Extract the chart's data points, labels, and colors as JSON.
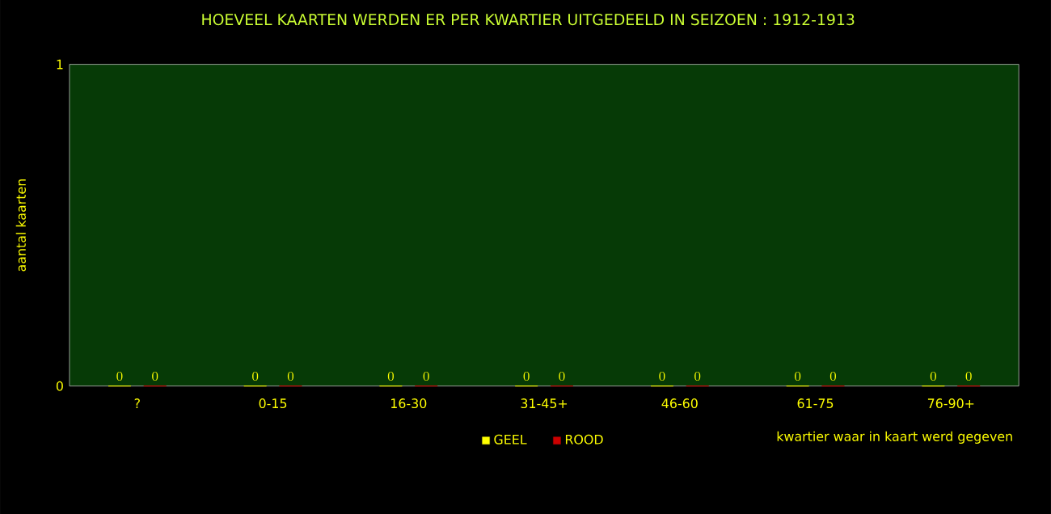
{
  "chart_data": {
    "type": "bar",
    "title": "HOEVEEL KAARTEN WERDEN ER PER KWARTIER UITGEDEELD IN SEIZOEN : 1912-1913",
    "xlabel": "kwartier waar in kaart werd gegeven",
    "ylabel": "aantal kaarten",
    "categories": [
      "?",
      "0-15",
      "16-30",
      "31-45+",
      "46-60",
      "61-75",
      "76-90+"
    ],
    "series": [
      {
        "name": "GEEL",
        "color": "#ffff00",
        "values": [
          0,
          0,
          0,
          0,
          0,
          0,
          0
        ]
      },
      {
        "name": "ROOD",
        "color": "#cc0000",
        "values": [
          0,
          0,
          0,
          0,
          0,
          0,
          0
        ]
      }
    ],
    "ylim": [
      0,
      1
    ],
    "yticks": [
      0,
      1
    ],
    "data_labels": true,
    "legend": "bottom",
    "grid": false
  }
}
